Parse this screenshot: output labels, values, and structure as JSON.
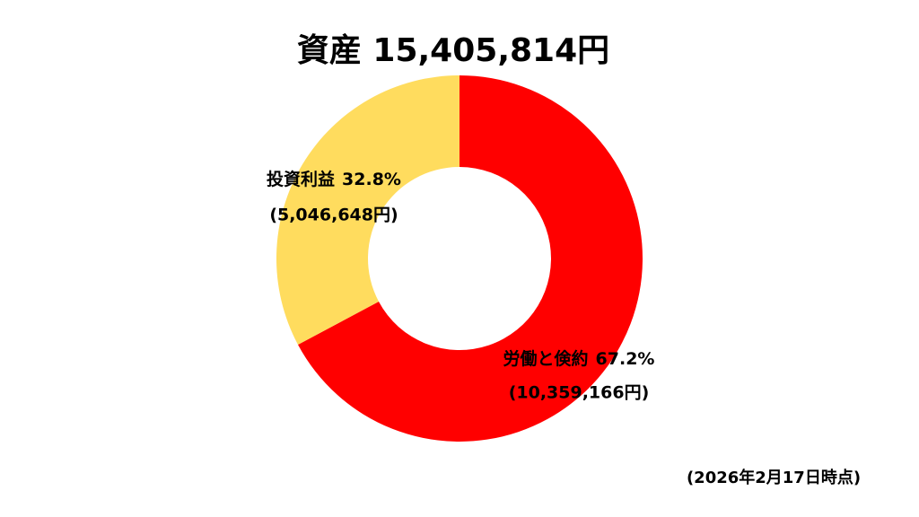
{
  "chart_data": {
    "type": "donut",
    "title": "資産 15,405,814円",
    "categories": [
      "労働と倹約",
      "投資利益"
    ],
    "values": [
      67.2,
      32.8
    ],
    "value_labels": [
      "67.2%",
      "32.8%"
    ],
    "amount_labels": [
      "(10,359,166円)",
      "(5,046,648円)"
    ],
    "colors": [
      "#ff0000",
      "#ffdc5e"
    ],
    "note": "(2026年2月17日時点)"
  }
}
